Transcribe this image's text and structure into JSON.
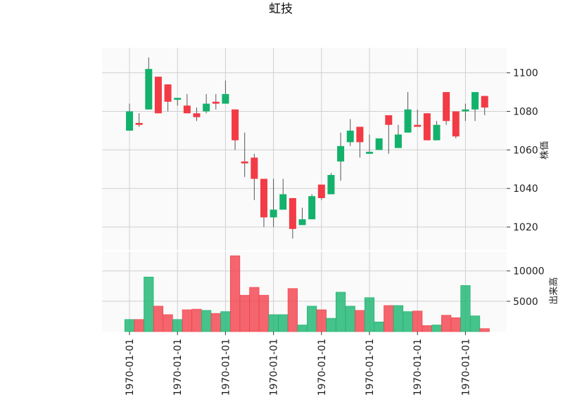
{
  "chart_data": {
    "type": "candlestick",
    "title": "虹技",
    "price_axis": {
      "label": "株価",
      "ticks": [
        1020,
        1040,
        1060,
        1080,
        1100
      ],
      "ylim": [
        1008,
        1113
      ]
    },
    "volume_axis": {
      "label": "出来高",
      "ticks": [
        5000,
        10000
      ],
      "ylim": [
        0,
        12500
      ]
    },
    "x_tick_labels": [
      "1970-01-01",
      "1970-01-01",
      "1970-01-01",
      "1970-01-01",
      "1970-01-01",
      "1970-01-01",
      "1970-01-01",
      "1970-01-01"
    ],
    "up_color": "#13b26b",
    "down_color": "#f23b45",
    "background": "#fafafa",
    "grid": true,
    "candles": [
      {
        "open": 1070,
        "high": 1084,
        "low": 1070,
        "close": 1080,
        "volume": 2000
      },
      {
        "open": 1074,
        "high": 1079,
        "low": 1072,
        "close": 1073,
        "volume": 2000
      },
      {
        "open": 1081,
        "high": 1108,
        "low": 1081,
        "close": 1102,
        "volume": 9000
      },
      {
        "open": 1098,
        "high": 1098,
        "low": 1079,
        "close": 1079,
        "volume": 4200
      },
      {
        "open": 1094,
        "high": 1094,
        "low": 1080,
        "close": 1085,
        "volume": 2800
      },
      {
        "open": 1086,
        "high": 1087,
        "low": 1083,
        "close": 1087,
        "volume": 2000
      },
      {
        "open": 1083,
        "high": 1089,
        "low": 1079,
        "close": 1079,
        "volume": 3600
      },
      {
        "open": 1079,
        "high": 1082,
        "low": 1075,
        "close": 1077,
        "volume": 3700
      },
      {
        "open": 1080,
        "high": 1089,
        "low": 1079,
        "close": 1084,
        "volume": 3500
      },
      {
        "open": 1085,
        "high": 1089,
        "low": 1081,
        "close": 1084,
        "volume": 3000
      },
      {
        "open": 1084,
        "high": 1096,
        "low": 1084,
        "close": 1089,
        "volume": 3300
      },
      {
        "open": 1081,
        "high": 1081,
        "low": 1060,
        "close": 1065,
        "volume": 12500
      },
      {
        "open": 1054,
        "high": 1069,
        "low": 1046,
        "close": 1053,
        "volume": 6000
      },
      {
        "open": 1056,
        "high": 1058,
        "low": 1034,
        "close": 1045,
        "volume": 7300
      },
      {
        "open": 1045,
        "high": 1045,
        "low": 1020,
        "close": 1025,
        "volume": 6000
      },
      {
        "open": 1025,
        "high": 1045,
        "low": 1020,
        "close": 1029,
        "volume": 2800
      },
      {
        "open": 1029,
        "high": 1045,
        "low": 1029,
        "close": 1037,
        "volume": 2800
      },
      {
        "open": 1035,
        "high": 1035,
        "low": 1014,
        "close": 1019,
        "volume": 7100
      },
      {
        "open": 1021,
        "high": 1030,
        "low": 1021,
        "close": 1024,
        "volume": 1100
      },
      {
        "open": 1024,
        "high": 1037,
        "low": 1024,
        "close": 1036,
        "volume": 4200
      },
      {
        "open": 1042,
        "high": 1042,
        "low": 1034,
        "close": 1035,
        "volume": 3600
      },
      {
        "open": 1037,
        "high": 1048,
        "low": 1037,
        "close": 1047,
        "volume": 2200
      },
      {
        "open": 1054,
        "high": 1069,
        "low": 1044,
        "close": 1062,
        "volume": 6500
      },
      {
        "open": 1064,
        "high": 1076,
        "low": 1062,
        "close": 1070,
        "volume": 4200
      },
      {
        "open": 1072,
        "high": 1072,
        "low": 1056,
        "close": 1064,
        "volume": 3500
      },
      {
        "open": 1058,
        "high": 1068,
        "low": 1058,
        "close": 1059,
        "volume": 5600
      },
      {
        "open": 1060,
        "high": 1066,
        "low": 1060,
        "close": 1066,
        "volume": 1600
      },
      {
        "open": 1078,
        "high": 1078,
        "low": 1058,
        "close": 1073,
        "volume": 4300
      },
      {
        "open": 1061,
        "high": 1073,
        "low": 1061,
        "close": 1068,
        "volume": 4300
      },
      {
        "open": 1069,
        "high": 1090,
        "low": 1069,
        "close": 1081,
        "volume": 3300
      },
      {
        "open": 1073,
        "high": 1081,
        "low": 1072,
        "close": 1072,
        "volume": 3400
      },
      {
        "open": 1079,
        "high": 1079,
        "low": 1065,
        "close": 1065,
        "volume": 1000
      },
      {
        "open": 1065,
        "high": 1075,
        "low": 1065,
        "close": 1073,
        "volume": 1100
      },
      {
        "open": 1090,
        "high": 1090,
        "low": 1073,
        "close": 1075,
        "volume": 2700
      },
      {
        "open": 1080,
        "high": 1080,
        "low": 1066,
        "close": 1067,
        "volume": 2300
      },
      {
        "open": 1080,
        "high": 1084,
        "low": 1075,
        "close": 1081,
        "volume": 7600
      },
      {
        "open": 1081,
        "high": 1090,
        "low": 1075,
        "close": 1090,
        "volume": 2600
      },
      {
        "open": 1088,
        "high": 1088,
        "low": 1078,
        "close": 1082,
        "volume": 500
      }
    ]
  }
}
